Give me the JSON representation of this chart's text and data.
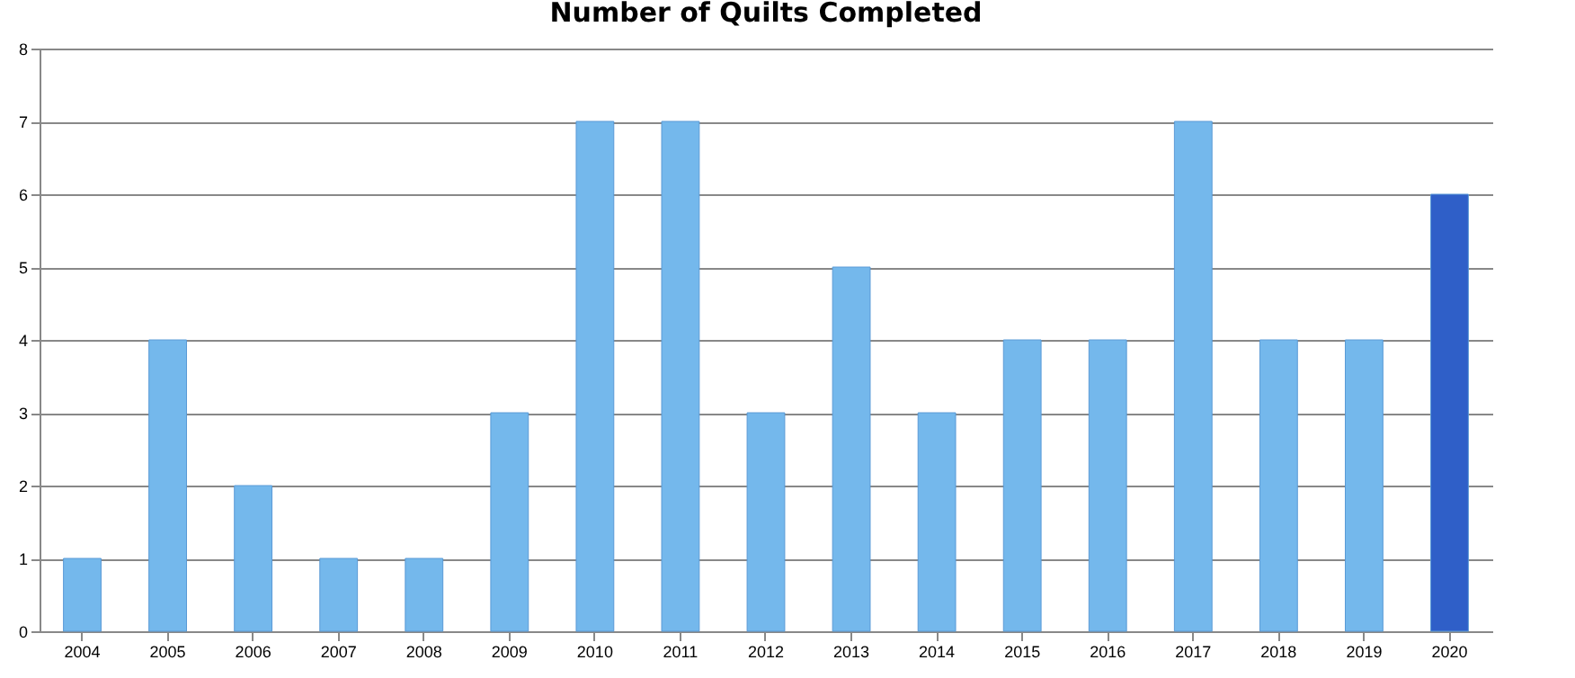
{
  "chart_data": {
    "type": "bar",
    "title": "Number of Quilts Completed",
    "categories": [
      "2004",
      "2005",
      "2006",
      "2007",
      "2008",
      "2009",
      "2010",
      "2011",
      "2012",
      "2013",
      "2014",
      "2015",
      "2016",
      "2017",
      "2018",
      "2019",
      "2020"
    ],
    "values": [
      1,
      4,
      2,
      1,
      1,
      3,
      7,
      7,
      3,
      5,
      3,
      4,
      4,
      7,
      4,
      4,
      6
    ],
    "colors": [
      "#74b8ec",
      "#74b8ec",
      "#74b8ec",
      "#74b8ec",
      "#74b8ec",
      "#74b8ec",
      "#74b8ec",
      "#74b8ec",
      "#74b8ec",
      "#74b8ec",
      "#74b8ec",
      "#74b8ec",
      "#74b8ec",
      "#74b8ec",
      "#74b8ec",
      "#74b8ec",
      "#2f5fc8"
    ],
    "ylim": [
      0,
      8
    ],
    "yticks": [
      0,
      1,
      2,
      3,
      4,
      5,
      6,
      7,
      8
    ],
    "grid": "y",
    "legend": false
  }
}
